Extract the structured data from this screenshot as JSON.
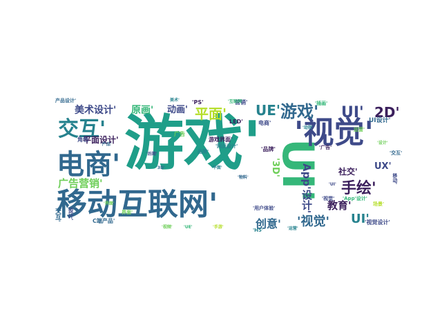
{
  "wordcloud": {
    "palette": {
      "dark_purple": "#3b1f5c",
      "indigo": "#3e4a89",
      "steel_blue": "#31688e",
      "teal": "#26828e",
      "green": "#1f9e89",
      "mint": "#35b779",
      "lime": "#6ece58",
      "yellow": "#b5de2b",
      "bright_yellow": "#d8e219"
    },
    "words": [
      {
        "text": "游戏'"
      },
      {
        "text": "UI'"
      },
      {
        "text": "'视觉'"
      },
      {
        "text": "移动互联网'"
      },
      {
        "text": "电商'"
      },
      {
        "text": "交互'"
      },
      {
        "text": "游戏'"
      },
      {
        "text": "UI'"
      },
      {
        "text": "2D'"
      },
      {
        "text": "UE'"
      },
      {
        "text": "平面'"
      },
      {
        "text": "手绘'"
      },
      {
        "text": "'视觉'"
      },
      {
        "text": "UI'"
      },
      {
        "text": "创意'"
      },
      {
        "text": "广告营销'"
      },
      {
        "text": "美术设计'"
      },
      {
        "text": "原画'"
      },
      {
        "text": "动画'"
      },
      {
        "text": "平面设计'"
      },
      {
        "text": "教育'"
      },
      {
        "text": "App'设计'"
      },
      {
        "text": "'3D'"
      },
      {
        "text": "UX'"
      },
      {
        "text": "社交'"
      },
      {
        "text": "角色"
      },
      {
        "text": "'PS'"
      },
      {
        "text": "C端产品'"
      },
      {
        "text": "营销'"
      },
      {
        "text": "交互'"
      },
      {
        "text": "'视觉设计'"
      },
      {
        "text": "UI设计'"
      },
      {
        "text": "LED'"
      },
      {
        "text": "广告"
      },
      {
        "text": "电商'"
      },
      {
        "text": "游戏界面'"
      },
      {
        "text": "'品牌'"
      },
      {
        "text": "界面'"
      },
      {
        "text": "'H5'"
      },
      {
        "text": "品牌'"
      },
      {
        "text": "'交互'"
      },
      {
        "text": "'App'设计'"
      },
      {
        "text": "'视觉'"
      },
      {
        "text": "运营'"
      },
      {
        "text": "'网页设计'"
      },
      {
        "text": "产品设计'"
      },
      {
        "text": "'插画'"
      },
      {
        "text": "'用户体验'"
      },
      {
        "text": "'广告'"
      },
      {
        "text": "设计'"
      },
      {
        "text": "'互联网'"
      },
      {
        "text": "美术'"
      },
      {
        "text": "场景'"
      },
      {
        "text": "'界面'"
      },
      {
        "text": "'动效'"
      },
      {
        "text": "'产品'"
      },
      {
        "text": "移动'"
      },
      {
        "text": "'3D'"
      },
      {
        "text": "'视频'"
      },
      {
        "text": "'平面'"
      },
      {
        "text": "'物料'"
      },
      {
        "text": "'UI'"
      },
      {
        "text": "'设计'"
      },
      {
        "text": "'UE'"
      },
      {
        "text": "'后期'"
      },
      {
        "text": "'手游'"
      },
      {
        "text": "'运营'"
      }
    ]
  }
}
